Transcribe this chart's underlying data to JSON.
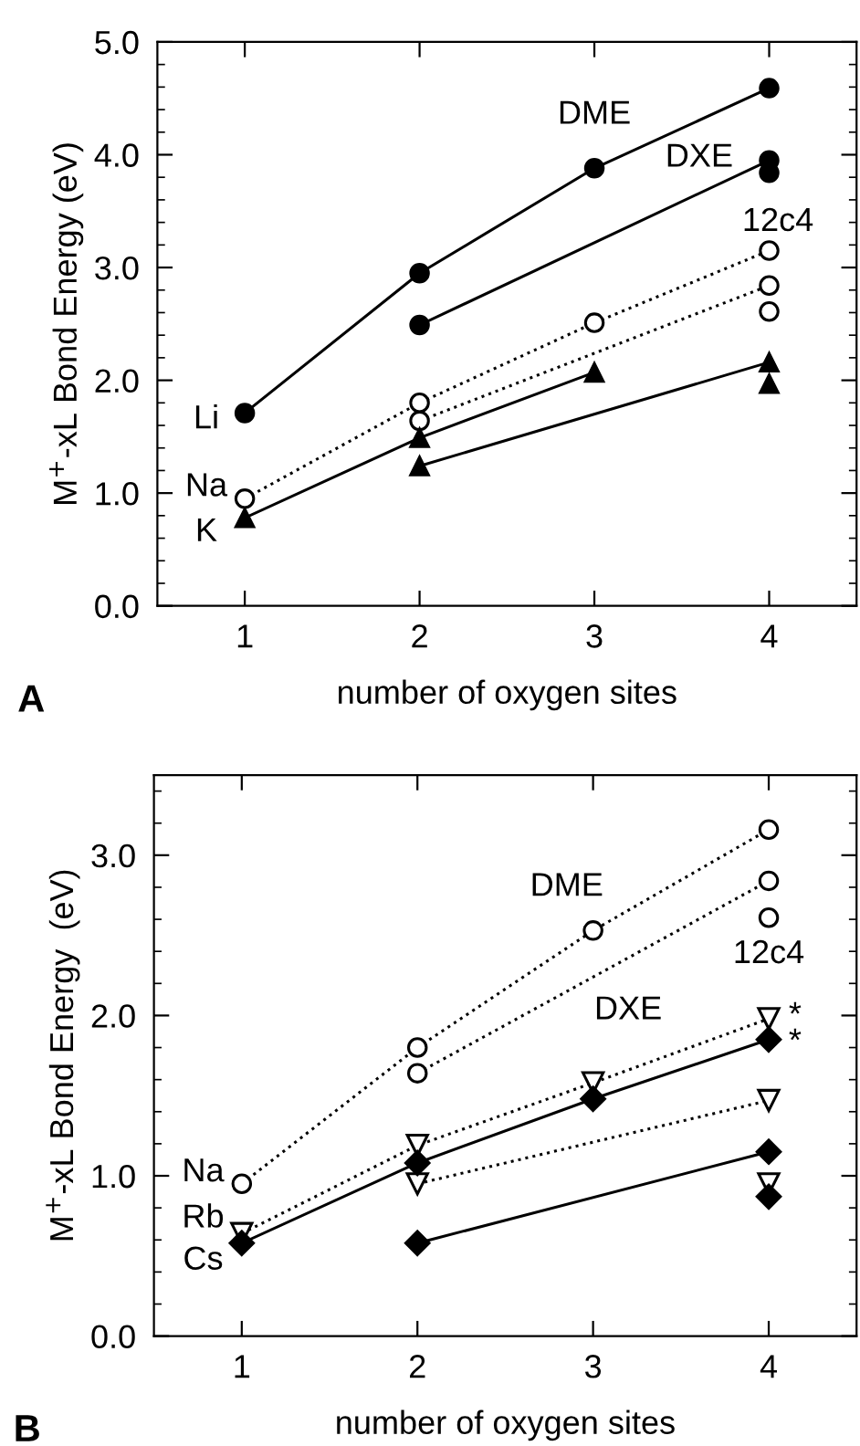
{
  "chart_data": [
    {
      "type": "line",
      "xlabel": "number of oxygen sites",
      "ylabel": "M$^{+}$-xL Bond Energy (eV)",
      "xlim": [
        0.5,
        4.5
      ],
      "xticks": [
        1,
        2,
        3,
        4
      ],
      "ylim": [
        0,
        5
      ],
      "yticks": [
        "0.0",
        {
          "value": 0.2,
          "label": null
        },
        {
          "value": 0.4,
          "label": null
        },
        {
          "value": 0.6,
          "label": null
        },
        {
          "value": 0.8,
          "label": null
        },
        {
          "value": 1.0,
          "label": "1.0"
        },
        {
          "value": 1.2,
          "label": null
        },
        {
          "value": 1.4,
          "label": null
        },
        {
          "value": 1.6,
          "label": null
        },
        {
          "value": 1.8,
          "label": null
        },
        {
          "value": 2.0,
          "label": "2.0"
        },
        {
          "value": 2.2,
          "label": null
        },
        {
          "value": 2.4,
          "label": null
        },
        {
          "value": 2.6,
          "label": null
        },
        {
          "value": 2.8,
          "label": null
        },
        {
          "value": 3.0,
          "label": "3.0"
        },
        {
          "value": 3.2,
          "label": null
        },
        {
          "value": 3.4,
          "label": null
        },
        {
          "value": 3.6,
          "label": null
        },
        {
          "value": 3.8,
          "label": null
        },
        {
          "value": 4.0,
          "label": "4.0"
        },
        {
          "value": 4.2,
          "label": null
        },
        {
          "value": 4.4,
          "label": null
        },
        {
          "value": 4.6,
          "label": null
        },
        {
          "value": 4.8,
          "label": null
        },
        {
          "value": 5.0,
          "label": "5.0"
        }
      ],
      "grid": false,
      "legend": false,
      "series": [
        {
          "color": "#000000",
          "marker": "circle",
          "line_style": "solid",
          "x": [
            1,
            2,
            3,
            4
          ],
          "values": [
            1.71,
            2.95,
            3.88,
            4.59
          ]
        },
        {
          "color": "#000000",
          "marker": "circle",
          "line_style": "solid",
          "x": [
            2,
            4
          ],
          "values": [
            2.49,
            3.95
          ]
        },
        {
          "type": "scatter",
          "color": "#000000",
          "marker": "circle",
          "line_style": "solid",
          "x": [
            4
          ],
          "values": [
            3.84
          ]
        },
        {
          "color": "#000000",
          "marker": "circle",
          "line_style": "dotted",
          "x": [
            1,
            2,
            3,
            4
          ],
          "values": [
            0.95,
            1.8,
            2.51,
            3.15
          ]
        },
        {
          "color": "#000000",
          "marker": "circle",
          "line_style": "dotted",
          "x": [
            2,
            4
          ],
          "values": [
            1.64,
            2.84
          ]
        },
        {
          "type": "scatter",
          "color": "#000000",
          "marker": "circle",
          "line_style": "dotted",
          "x": [
            4
          ],
          "values": [
            2.61
          ]
        },
        {
          "color": "#000000",
          "marker": "triangle",
          "line_style": "solid",
          "x": [
            1,
            2,
            3
          ],
          "values": [
            0.78,
            1.49,
            2.07
          ]
        },
        {
          "color": "#000000",
          "marker": "triangle",
          "line_style": "solid",
          "x": [
            2,
            4
          ],
          "values": [
            1.24,
            2.16
          ]
        },
        {
          "type": "scatter",
          "color": "#000000",
          "marker": "triangle",
          "line_style": "solid",
          "x": [
            4
          ],
          "values": [
            1.97
          ]
        }
      ],
      "annotations": [
        "A",
        "DME",
        "DXE",
        "12c4",
        "Li",
        "Na",
        "K"
      ]
    },
    {
      "type": "line",
      "xlabel": "number of oxygen sites",
      "ylabel": "M$^{+}$-xL Bond Energy  (eV)",
      "xlim": [
        0.5,
        4.5
      ],
      "xticks": [
        1,
        2,
        3,
        4
      ],
      "ylim": [
        0,
        3.5
      ],
      "yticks": [
        "0.0",
        {
          "value": 0.2,
          "label": null
        },
        {
          "value": 0.4,
          "label": null
        },
        {
          "value": 0.6,
          "label": null
        },
        {
          "value": 0.8,
          "label": null
        },
        {
          "value": 1.0,
          "label": "1.0"
        },
        {
          "value": 1.2,
          "label": null
        },
        {
          "value": 1.4,
          "label": null
        },
        {
          "value": 1.6,
          "label": null
        },
        {
          "value": 1.8,
          "label": null
        },
        {
          "value": 2.0,
          "label": "2.0"
        },
        {
          "value": 2.2,
          "label": null
        },
        {
          "value": 2.4,
          "label": null
        },
        {
          "value": 2.6,
          "label": null
        },
        {
          "value": 2.8,
          "label": null
        },
        {
          "value": 3.0,
          "label": "3.0"
        },
        {
          "value": 3.2,
          "label": null
        },
        {
          "value": 3.4,
          "label": null
        }
      ],
      "grid": false,
      "legend": false,
      "series": [
        {
          "color": "#000000",
          "marker": "circle",
          "line_style": "dotted",
          "x": [
            1,
            2,
            3,
            4
          ],
          "values": [
            0.95,
            1.8,
            2.53,
            3.16
          ]
        },
        {
          "color": "#000000",
          "marker": "circle",
          "line_style": "dotted",
          "x": [
            2,
            4
          ],
          "values": [
            1.64,
            2.84
          ]
        },
        {
          "type": "scatter",
          "color": "#000000",
          "marker": "circle",
          "line_style": "dotted",
          "x": [
            4
          ],
          "values": [
            2.61
          ]
        },
        {
          "color": "#000000",
          "marker": "triangle_down",
          "line_style": "dotted",
          "x": [
            1,
            2,
            3,
            4
          ],
          "values": [
            0.64,
            1.19,
            1.58,
            1.98
          ]
        },
        {
          "color": "#000000",
          "marker": "triangle_down",
          "line_style": "dotted",
          "x": [
            2,
            4
          ],
          "values": [
            0.95,
            1.47
          ]
        },
        {
          "type": "scatter",
          "color": "#000000",
          "marker": "triangle_down",
          "line_style": "dotted",
          "x": [
            4
          ],
          "values": [
            0.95
          ]
        },
        {
          "color": "#000000",
          "marker": "diamond",
          "line_style": "solid",
          "x": [
            1,
            2,
            3,
            4
          ],
          "values": [
            0.58,
            1.08,
            1.48,
            1.85
          ]
        },
        {
          "color": "#000000",
          "marker": "diamond",
          "line_style": "solid",
          "x": [
            2,
            4
          ],
          "values": [
            0.58,
            1.15
          ]
        },
        {
          "type": "scatter",
          "color": "#000000",
          "marker": "diamond",
          "line_style": "solid",
          "x": [
            4
          ],
          "values": [
            0.87
          ]
        }
      ],
      "annotations": [
        "B",
        "DME",
        "DXE",
        "12c4",
        "*",
        "*",
        "Na",
        "Rb",
        "Cs"
      ]
    }
  ]
}
